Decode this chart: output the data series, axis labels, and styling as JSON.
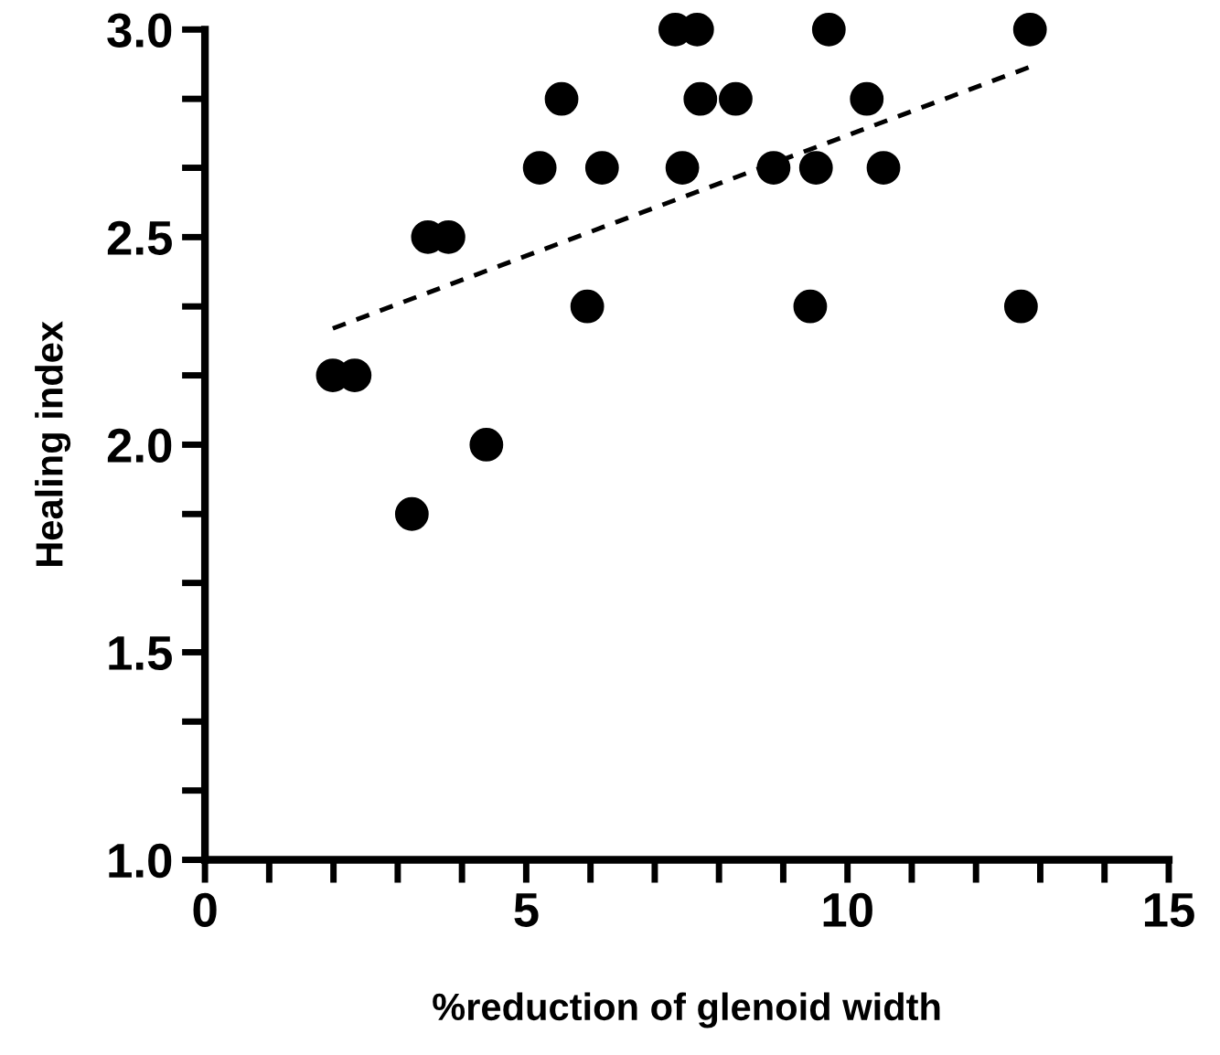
{
  "chart_data": {
    "type": "scatter",
    "xlabel": "%reduction of glenoid width",
    "ylabel": "Healing index",
    "xlim": [
      0,
      15
    ],
    "ylim": [
      1.0,
      3.0
    ],
    "xticks": [
      0,
      {
        "value": 1,
        "label": null
      },
      {
        "value": 2,
        "label": null
      },
      {
        "value": 3,
        "label": null
      },
      {
        "value": 4,
        "label": null
      },
      5,
      {
        "value": 6,
        "label": null
      },
      {
        "value": 7,
        "label": null
      },
      {
        "value": 8,
        "label": null
      },
      {
        "value": 9,
        "label": null
      },
      10,
      {
        "value": 11,
        "label": null
      },
      {
        "value": 12,
        "label": null
      },
      {
        "value": 13,
        "label": null
      },
      {
        "value": 14,
        "label": null
      },
      15
    ],
    "yticks": [
      {
        "value": 1.0,
        "label": "1.0"
      },
      {
        "value": 1.167,
        "label": null
      },
      {
        "value": 1.333,
        "label": null
      },
      {
        "value": 1.5,
        "label": "1.5"
      },
      {
        "value": 1.667,
        "label": null
      },
      {
        "value": 1.833,
        "label": null
      },
      {
        "value": 2.0,
        "label": "2.0"
      },
      {
        "value": 2.167,
        "label": null
      },
      {
        "value": 2.333,
        "label": null
      },
      {
        "value": 2.5,
        "label": "2.5"
      },
      {
        "value": 2.667,
        "label": null
      },
      {
        "value": 2.833,
        "label": null
      },
      {
        "value": 3.0,
        "label": "3.0"
      }
    ],
    "grid": false,
    "legend": false,
    "series": [
      {
        "color": "#000000",
        "marker": "circle",
        "x": [
          1.99,
          2.33,
          3.22,
          3.47,
          3.79,
          4.38,
          5.21,
          5.55,
          5.95,
          6.18,
          7.32,
          7.43,
          7.66,
          7.71,
          8.26,
          8.85,
          9.42,
          9.51,
          9.71,
          10.3,
          10.56,
          12.7,
          12.84
        ],
        "values": [
          2.167,
          2.167,
          1.833,
          2.5,
          2.5,
          2.0,
          2.667,
          2.833,
          2.333,
          2.667,
          3.0,
          2.667,
          3.0,
          2.833,
          2.833,
          2.667,
          2.333,
          2.667,
          3.0,
          2.833,
          2.667,
          2.333,
          3.0
        ]
      },
      {
        "type": "line",
        "color": "#000000",
        "line_style": "dashed",
        "marker": "none",
        "x": [
          1.99,
          12.84
        ],
        "values": [
          2.28,
          2.91
        ]
      }
    ]
  }
}
